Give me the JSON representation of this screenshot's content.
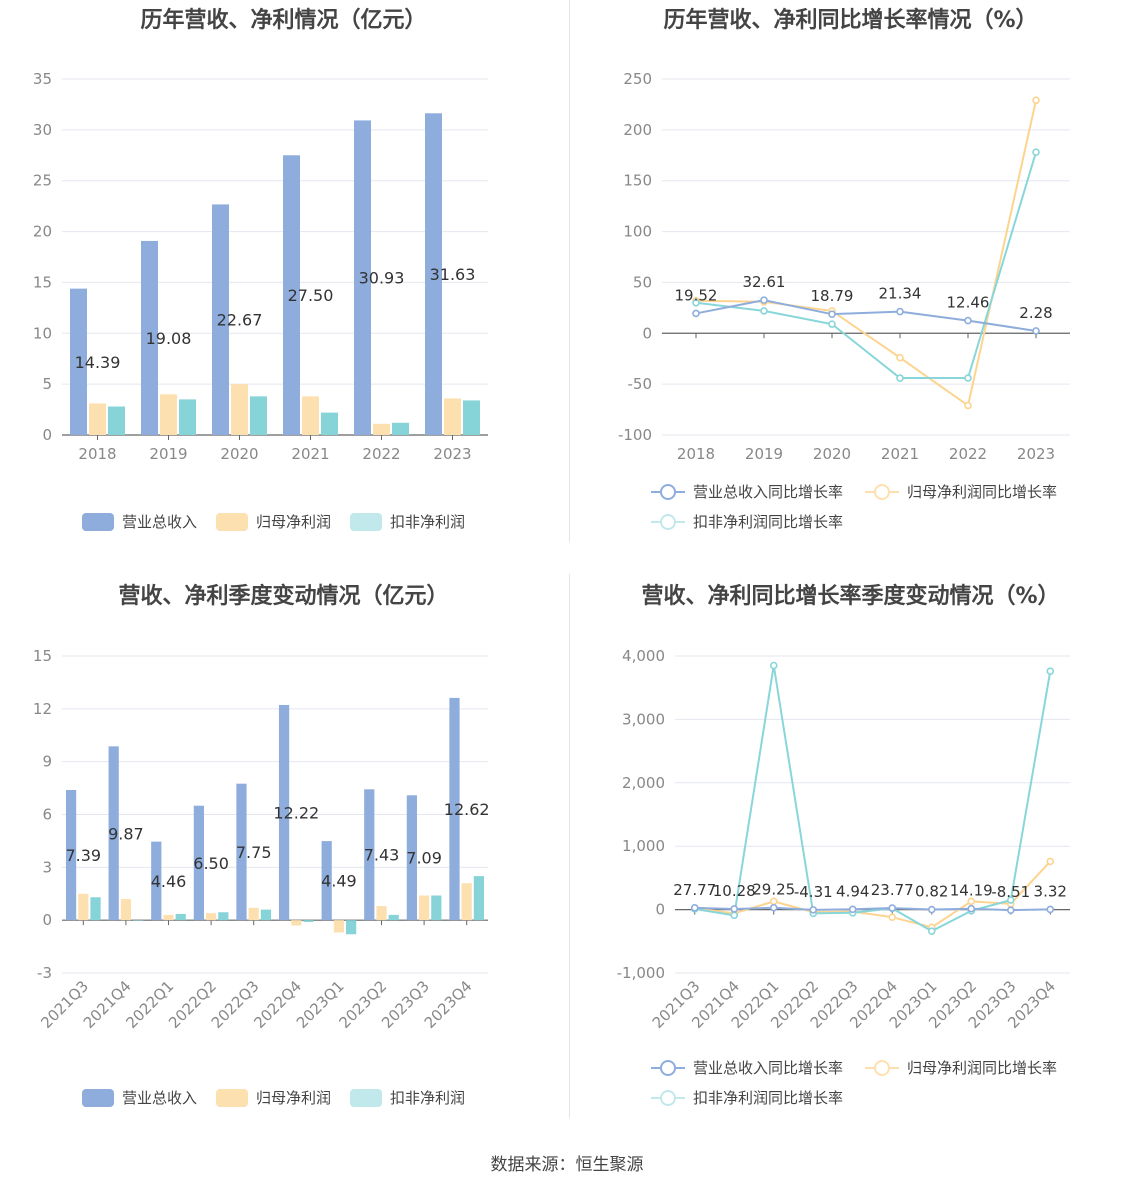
{
  "source": "数据来源：恒生聚源",
  "colors": {
    "revenue": "#8eaddc",
    "net_profit": "#fde0b0",
    "deducted": "#86d3d8",
    "rev_line": "#8eaddc",
    "np_line": "#fcd490",
    "ded_line": "#88d6d9"
  },
  "legend_bar": [
    "营业总收入",
    "归母净利润",
    "扣非净利润"
  ],
  "legend_line": [
    "营业总收入同比增长率",
    "归母净利润同比增长率",
    "扣非净利润同比增长率"
  ],
  "chart_data": [
    {
      "type": "bar",
      "title": "历年营收、净利情况（亿元）",
      "categories": [
        "2018",
        "2019",
        "2020",
        "2021",
        "2022",
        "2023"
      ],
      "ylim": [
        0,
        35
      ],
      "yticks": [
        0,
        5,
        10,
        15,
        20,
        25,
        30,
        35
      ],
      "series": [
        {
          "name": "营业总收入",
          "values": [
            14.39,
            19.08,
            22.67,
            27.5,
            30.93,
            31.63
          ],
          "labels": [
            "14.39",
            "19.08",
            "22.67",
            "27.50",
            "30.93",
            "31.63"
          ]
        },
        {
          "name": "归母净利润",
          "values": [
            3.1,
            4.0,
            5.0,
            3.8,
            1.1,
            3.6
          ]
        },
        {
          "name": "扣非净利润",
          "values": [
            2.8,
            3.5,
            3.8,
            2.2,
            1.2,
            3.4
          ]
        }
      ]
    },
    {
      "type": "line",
      "title": "历年营收、净利同比增长率情况（%）",
      "categories": [
        "2018",
        "2019",
        "2020",
        "2021",
        "2022",
        "2023"
      ],
      "ylim": [
        -100,
        250
      ],
      "yticks": [
        -100,
        -50,
        0,
        50,
        100,
        150,
        200,
        250
      ],
      "series": [
        {
          "name": "营业总收入同比增长率",
          "values": [
            19.52,
            32.61,
            18.79,
            21.34,
            12.46,
            2.28
          ],
          "labels": [
            "19.52",
            "32.61",
            "18.79",
            "21.34",
            "12.46",
            "2.28"
          ]
        },
        {
          "name": "归母净利润同比增长率",
          "values": [
            32,
            31,
            22,
            -24,
            -71,
            229
          ]
        },
        {
          "name": "扣非净利润同比增长率",
          "values": [
            30,
            22,
            9,
            -44,
            -44,
            178
          ]
        }
      ]
    },
    {
      "type": "bar",
      "title": "营收、净利季度变动情况（亿元）",
      "categories": [
        "2021Q3",
        "2021Q4",
        "2022Q1",
        "2022Q2",
        "2022Q3",
        "2022Q4",
        "2023Q1",
        "2023Q2",
        "2023Q3",
        "2023Q4"
      ],
      "ylim": [
        -3,
        15
      ],
      "yticks": [
        -3,
        0,
        3,
        6,
        9,
        12,
        15
      ],
      "series": [
        {
          "name": "营业总收入",
          "values": [
            7.39,
            9.87,
            4.46,
            6.5,
            7.75,
            12.22,
            4.49,
            7.43,
            7.09,
            12.62
          ],
          "labels": [
            "7.39",
            "9.87",
            "4.46",
            "6.50",
            "7.75",
            "12.22",
            "4.49",
            "7.43",
            "7.09",
            "12.62"
          ]
        },
        {
          "name": "归母净利润",
          "values": [
            1.5,
            1.2,
            0.3,
            0.4,
            0.7,
            -0.3,
            -0.7,
            0.8,
            1.4,
            2.1
          ]
        },
        {
          "name": "扣非净利润",
          "values": [
            1.3,
            0.0,
            0.35,
            0.45,
            0.6,
            -0.1,
            -0.8,
            0.3,
            1.4,
            2.5
          ]
        }
      ]
    },
    {
      "type": "line",
      "title": "营收、净利同比增长率季度变动情况（%）",
      "categories": [
        "2021Q3",
        "2021Q4",
        "2022Q1",
        "2022Q2",
        "2022Q3",
        "2022Q4",
        "2023Q1",
        "2023Q2",
        "2023Q3",
        "2023Q4"
      ],
      "ylim": [
        -1000,
        4000
      ],
      "yticks": [
        -1000,
        0,
        1000,
        2000,
        3000,
        4000
      ],
      "ytick_labels": [
        "-1,000",
        "0",
        "1,000",
        "2,000",
        "3,000",
        "4,000"
      ],
      "series": [
        {
          "name": "营业总收入同比增长率",
          "values": [
            27.77,
            10.28,
            29.25,
            -4.31,
            4.94,
            23.77,
            0.82,
            14.19,
            -8.51,
            3.32
          ],
          "labels": [
            "27.77",
            "10.28",
            "29.25",
            "-4.31",
            "4.94",
            "23.77",
            "0.82",
            "14.19",
            "-8.51",
            "3.32"
          ]
        },
        {
          "name": "归母净利润同比增长率",
          "values": [
            20,
            -60,
            130,
            -40,
            -30,
            -120,
            -280,
            130,
            90,
            760
          ]
        },
        {
          "name": "扣非净利润同比增长率",
          "values": [
            10,
            -90,
            3850,
            -60,
            -50,
            20,
            -340,
            -20,
            150,
            3760
          ]
        }
      ]
    }
  ]
}
